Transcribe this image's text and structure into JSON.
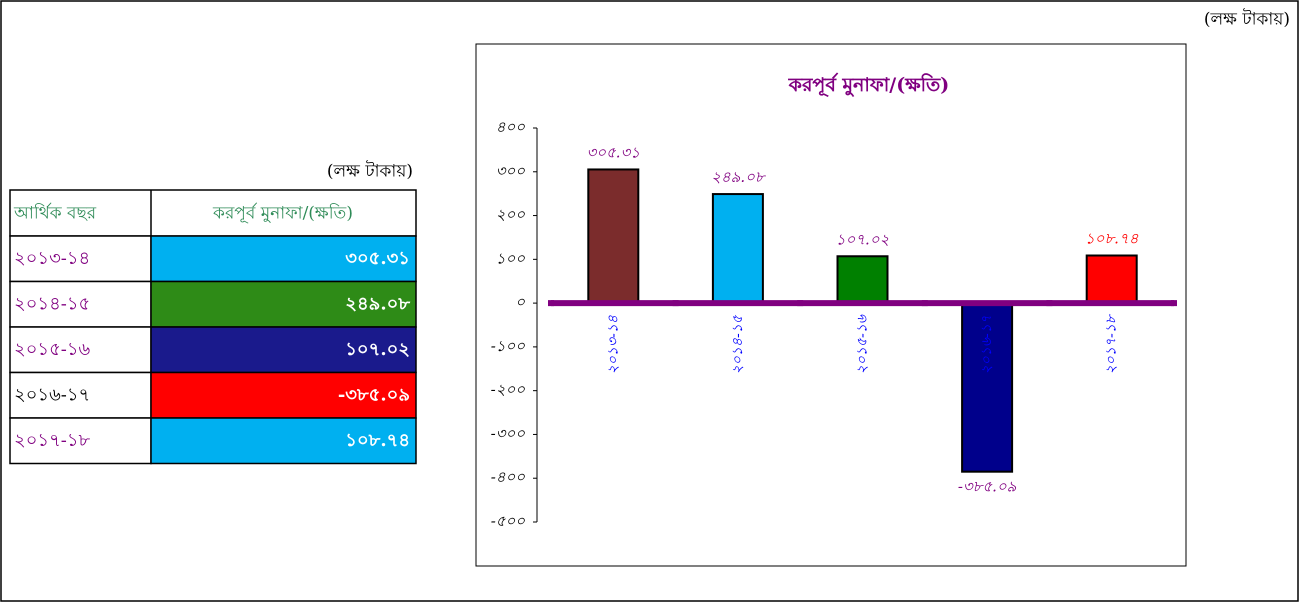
{
  "unit_label": "(লক্ষ টাকায়)",
  "table": {
    "header": "আর্থিক বছর",
    "cell_colors": [
      "#00b0f0",
      "#2e8b17",
      "#1a1a8c",
      "#ff0000",
      "#00b0f0"
    ],
    "year_colors": [
      "#800080",
      "#800080",
      "#800080",
      "#000000",
      "#800080"
    ]
  },
  "chart_data": {
    "type": "bar",
    "title": "করপূর্ব মুনাফা/(ক্ষতি)",
    "categories": [
      "২০১৩-১৪",
      "২০১৪-১৫",
      "২০১৫-১৬",
      "২০১৬-১৭",
      "২০১৭-১৮"
    ],
    "values": [
      305.31,
      249.08,
      107.02,
      -385.09,
      108.74
    ],
    "value_labels": [
      "৩০৫.৩১",
      "২৪৯.০৮",
      "১০৭.০২",
      "-৩৮৫.০৯",
      "১০৮.৭৪"
    ],
    "colors": [
      "#7b2c2c",
      "#00b0f0",
      "#008000",
      "#00008b",
      "#ff0000"
    ],
    "value_label_colors": [
      "#800080",
      "#800080",
      "#800080",
      "#800080",
      "#ff0000"
    ],
    "ylim": [
      -500,
      400
    ],
    "yticks": [
      {
        "value": 400,
        "label": "৪০০"
      },
      {
        "value": 300,
        "label": "৩০০"
      },
      {
        "value": 200,
        "label": "২০০"
      },
      {
        "value": 100,
        "label": "১০০"
      },
      {
        "value": 0,
        "label": "০"
      },
      {
        "value": -100,
        "label": "-১০০"
      },
      {
        "value": -200,
        "label": "-২০০"
      },
      {
        "value": -300,
        "label": "-৩০০"
      },
      {
        "value": -400,
        "label": "-৪০০"
      },
      {
        "value": -500,
        "label": "-৫০০"
      }
    ],
    "grid": false
  }
}
